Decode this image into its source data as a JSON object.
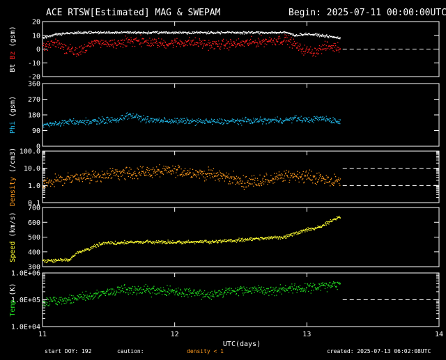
{
  "header": {
    "title": "ACE RTSW[Estimated] MAG & SWEPAM",
    "begin": "Begin: 2025-07-11 00:00:00UTC"
  },
  "footer": {
    "start_doy": "start DOY: 192",
    "caution": "caution:",
    "density_note": "density < 1",
    "created": "created: 2025-07-13 06:02:08UTC",
    "xlabel": "UTC(days)"
  },
  "colors": {
    "background": "#000000",
    "axes": "#ffffff",
    "bt": "#ffffff",
    "bz": "#ff2020",
    "phi": "#22b8e8",
    "density": "#ff9a1e",
    "speed": "#ffff33",
    "temp": "#22dd22",
    "caution": "#ff9a1e"
  },
  "chart_data": {
    "type": "scatter",
    "x_axis": {
      "label": "UTC(days)",
      "range": [
        11,
        14
      ],
      "ticks": [
        11,
        12,
        13,
        14
      ],
      "tick_labels": [
        "11",
        "12",
        "13",
        "14"
      ],
      "data_end": 13.25
    },
    "panels": [
      {
        "id": "mag",
        "ylabel_parts": [
          {
            "text": "Bt",
            "color": "#ffffff"
          },
          {
            "text": "Bz",
            "color": "#ff2020"
          },
          {
            "text": "(gsm)",
            "color": "#ffffff"
          }
        ],
        "scale": "linear",
        "ylim": [
          -20,
          20
        ],
        "ticks": [
          -20,
          -10,
          0,
          10,
          20
        ],
        "tick_labels": [
          "-20",
          "-10",
          "0",
          "10",
          "20"
        ],
        "ref_lines": [
          0
        ],
        "series": [
          {
            "name": "Bt",
            "color": "#ffffff",
            "noise": 0.6,
            "knots": [
              [
                11.0,
                8
              ],
              [
                11.1,
                11
              ],
              [
                11.3,
                12
              ],
              [
                11.6,
                12
              ],
              [
                12.0,
                12
              ],
              [
                12.4,
                12
              ],
              [
                12.85,
                12
              ],
              [
                12.9,
                10
              ],
              [
                13.0,
                11
              ],
              [
                13.1,
                10
              ],
              [
                13.25,
                8
              ]
            ]
          },
          {
            "name": "Bz",
            "color": "#ff2020",
            "noise": 2.5,
            "knots": [
              [
                11.0,
                2
              ],
              [
                11.1,
                4
              ],
              [
                11.25,
                -3
              ],
              [
                11.4,
                5
              ],
              [
                11.55,
                4
              ],
              [
                11.7,
                6
              ],
              [
                11.9,
                4
              ],
              [
                12.1,
                5
              ],
              [
                12.3,
                3
              ],
              [
                12.5,
                4
              ],
              [
                12.7,
                6
              ],
              [
                12.85,
                7
              ],
              [
                12.95,
                0
              ],
              [
                13.05,
                -2
              ],
              [
                13.15,
                2
              ],
              [
                13.25,
                1
              ]
            ]
          }
        ]
      },
      {
        "id": "phi",
        "ylabel_parts": [
          {
            "text": "Phi",
            "color": "#22b8e8"
          },
          {
            "text": "(gsm)",
            "color": "#ffffff"
          }
        ],
        "scale": "linear",
        "ylim": [
          0,
          360
        ],
        "ticks": [
          0,
          90,
          180,
          270,
          360
        ],
        "tick_labels": [
          "0",
          "90",
          "180",
          "270",
          "360"
        ],
        "ref_lines": [],
        "series": [
          {
            "name": "Phi",
            "color": "#22b8e8",
            "noise": 12,
            "knots": [
              [
                11.0,
                120
              ],
              [
                11.2,
                140
              ],
              [
                11.4,
                145
              ],
              [
                11.55,
                150
              ],
              [
                11.65,
                180
              ],
              [
                11.8,
                150
              ],
              [
                12.0,
                145
              ],
              [
                12.3,
                140
              ],
              [
                12.5,
                145
              ],
              [
                12.85,
                150
              ],
              [
                12.9,
                160
              ],
              [
                13.0,
                150
              ],
              [
                13.1,
                160
              ],
              [
                13.25,
                140
              ]
            ]
          }
        ]
      },
      {
        "id": "density",
        "ylabel_parts": [
          {
            "text": "Density",
            "color": "#ff9a1e"
          },
          {
            "text": "(/cm3)",
            "color": "#ffffff"
          }
        ],
        "scale": "log",
        "ylim": [
          0.1,
          100
        ],
        "ticks": [
          0.1,
          1,
          10,
          100
        ],
        "tick_labels": [
          "0.1",
          "1.0",
          "10.0",
          "100.0"
        ],
        "ref_lines": [
          1,
          10
        ],
        "series": [
          {
            "name": "Density",
            "color": "#ff9a1e",
            "noise": 0.25,
            "knots": [
              [
                11.0,
                1.5
              ],
              [
                11.2,
                2.5
              ],
              [
                11.4,
                3.5
              ],
              [
                11.6,
                5
              ],
              [
                11.8,
                6
              ],
              [
                12.0,
                7
              ],
              [
                12.2,
                5
              ],
              [
                12.4,
                3
              ],
              [
                12.5,
                1.5
              ],
              [
                12.7,
                2
              ],
              [
                12.9,
                4
              ],
              [
                13.1,
                2.5
              ],
              [
                13.25,
                1.5
              ]
            ]
          }
        ]
      },
      {
        "id": "speed",
        "ylabel_parts": [
          {
            "text": "Speed",
            "color": "#ffff33"
          },
          {
            "text": "(km/s)",
            "color": "#ffffff"
          }
        ],
        "scale": "linear",
        "ylim": [
          300,
          700
        ],
        "ticks": [
          300,
          400,
          500,
          600,
          700
        ],
        "tick_labels": [
          "300",
          "400",
          "500",
          "600",
          "700"
        ],
        "ref_lines": [],
        "series": [
          {
            "name": "Speed",
            "color": "#ffff33",
            "noise": 8,
            "knots": [
              [
                11.0,
                340
              ],
              [
                11.2,
                345
              ],
              [
                11.25,
                390
              ],
              [
                11.35,
                420
              ],
              [
                11.45,
                460
              ],
              [
                11.6,
                460
              ],
              [
                11.8,
                470
              ],
              [
                12.0,
                465
              ],
              [
                12.3,
                470
              ],
              [
                12.5,
                480
              ],
              [
                12.8,
                500
              ],
              [
                12.9,
                520
              ],
              [
                13.0,
                550
              ],
              [
                13.1,
                570
              ],
              [
                13.25,
                640
              ]
            ]
          }
        ]
      },
      {
        "id": "temp",
        "ylabel_parts": [
          {
            "text": "Temp",
            "color": "#22dd22"
          },
          {
            "text": "(K)",
            "color": "#ffffff"
          }
        ],
        "scale": "log",
        "ylim": [
          10000,
          1000000
        ],
        "ticks": [
          10000,
          100000,
          1000000
        ],
        "tick_labels": [
          "1.0E+04",
          "1.0E+05",
          "1.0E+06"
        ],
        "ref_lines": [
          100000
        ],
        "series": [
          {
            "name": "Temp",
            "color": "#22dd22",
            "noise": 0.12,
            "knots": [
              [
                11.0,
                80000
              ],
              [
                11.2,
                100000
              ],
              [
                11.4,
                150000
              ],
              [
                11.6,
                250000
              ],
              [
                11.8,
                220000
              ],
              [
                12.0,
                200000
              ],
              [
                12.3,
                150000
              ],
              [
                12.5,
                250000
              ],
              [
                12.7,
                220000
              ],
              [
                12.9,
                260000
              ],
              [
                13.1,
                300000
              ],
              [
                13.25,
                380000
              ]
            ]
          }
        ]
      }
    ]
  }
}
